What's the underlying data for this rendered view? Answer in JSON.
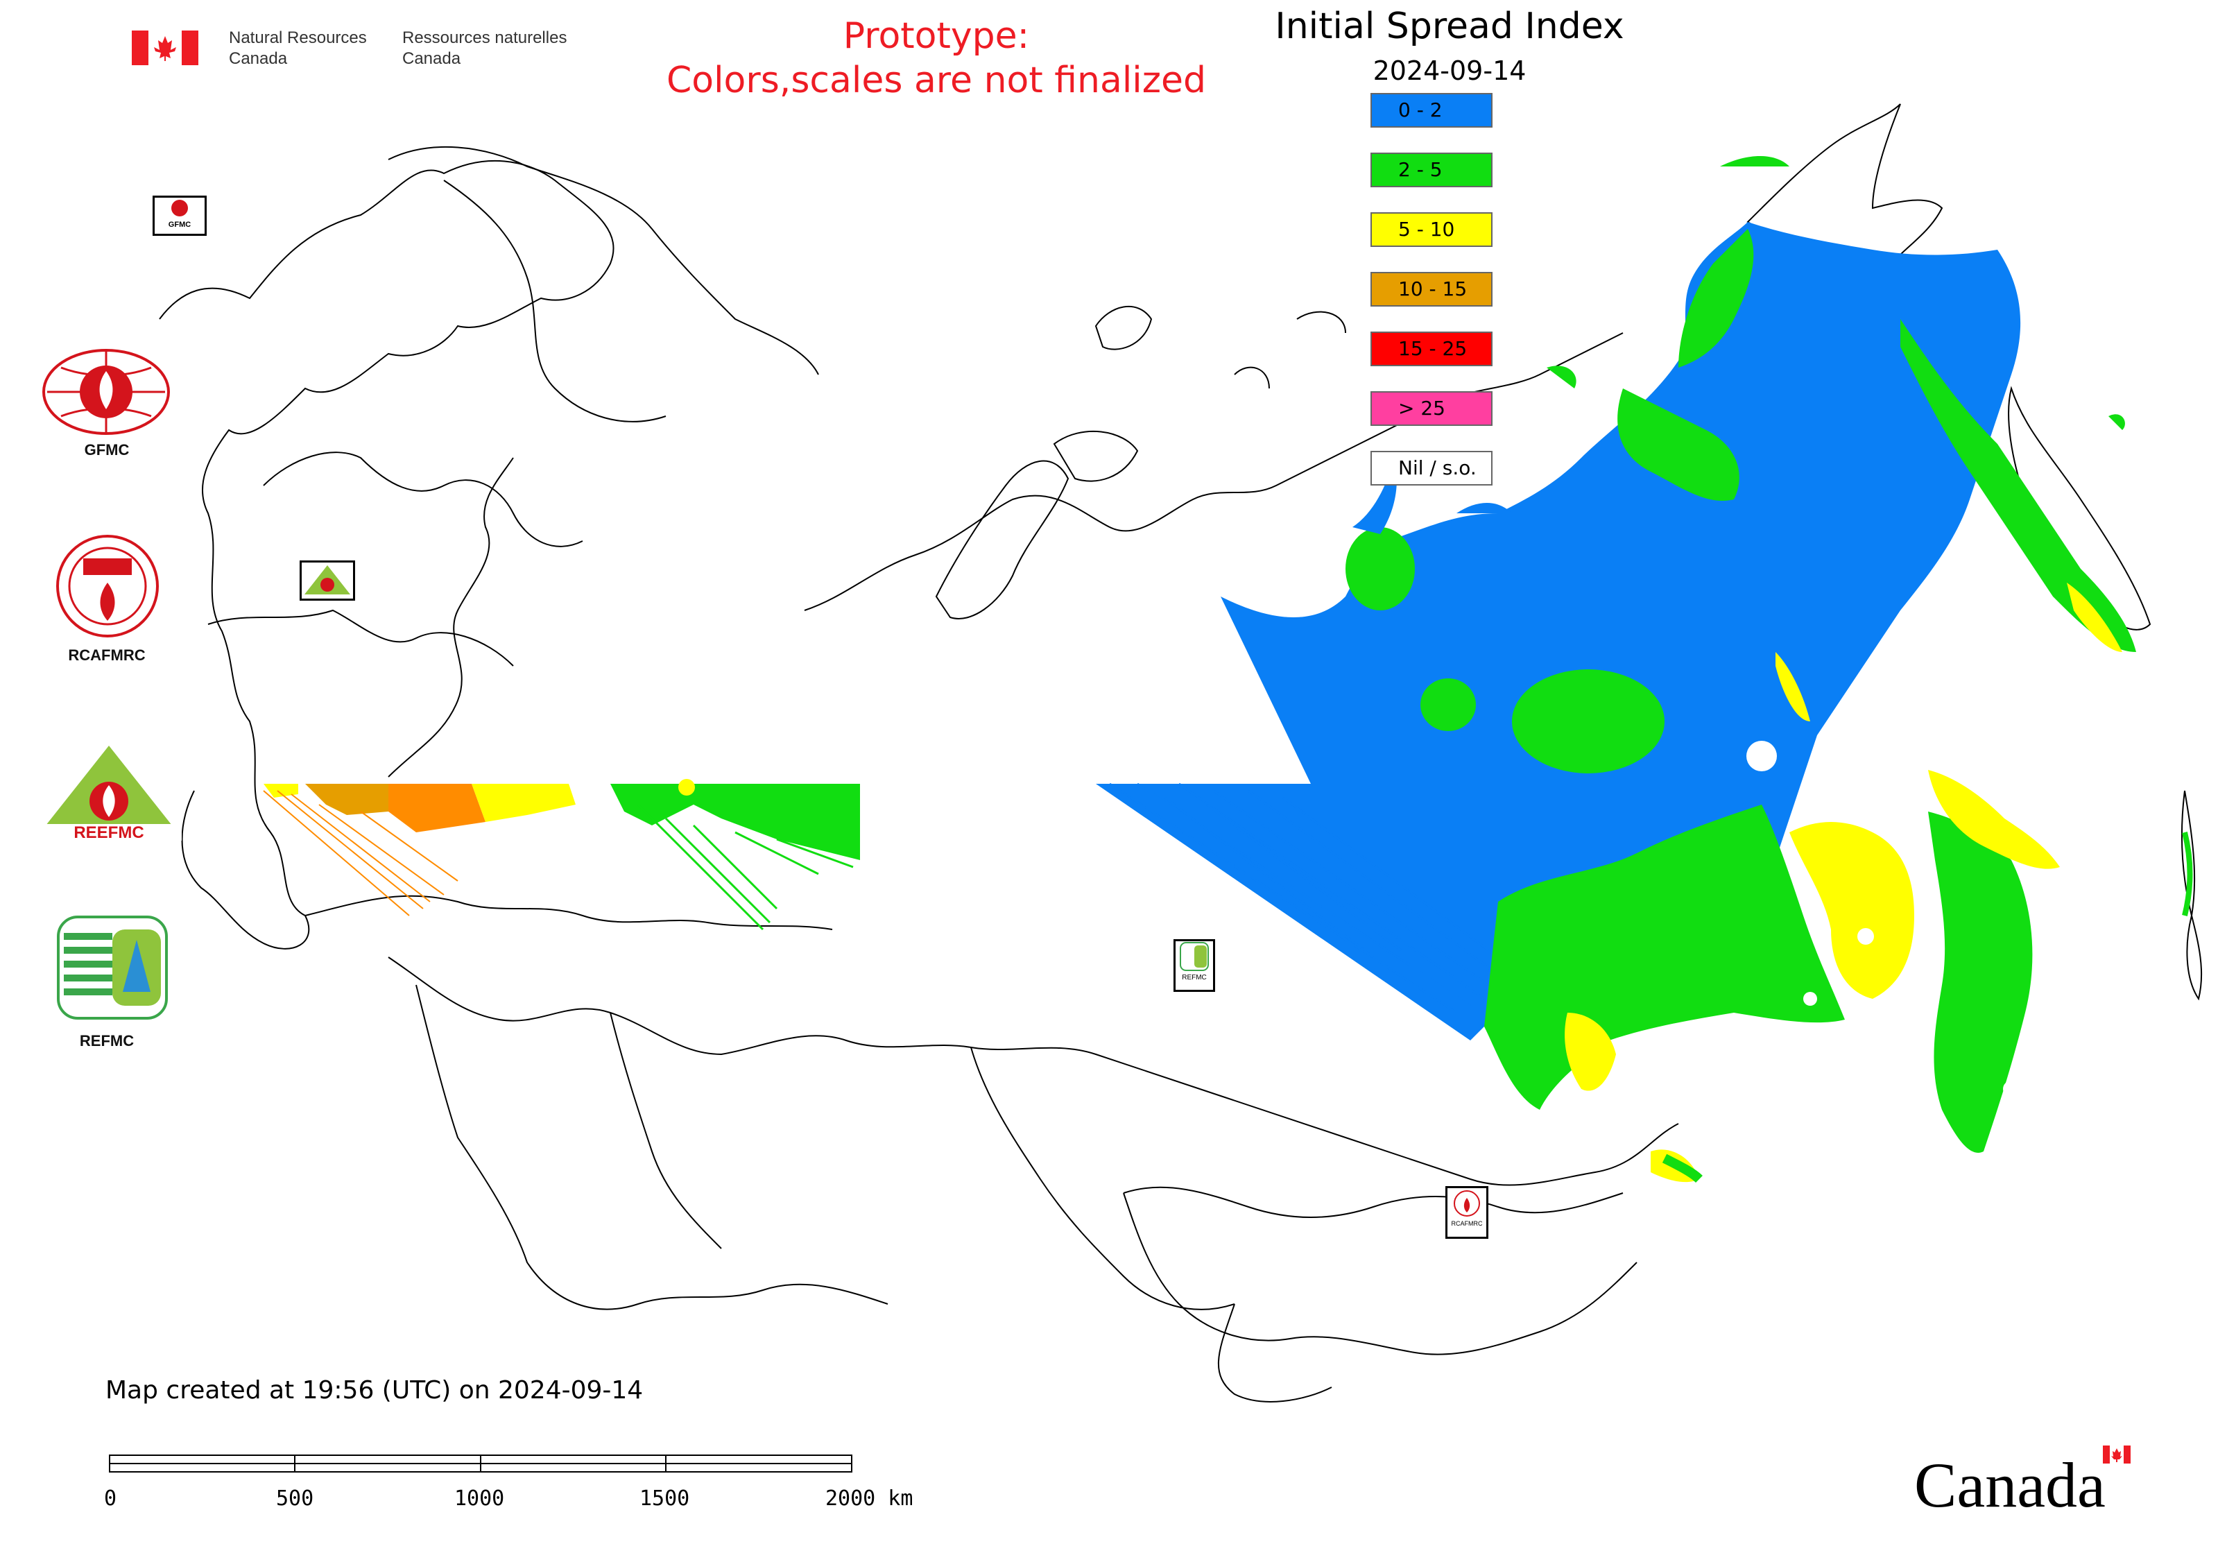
{
  "header": {
    "org_en_line1": "Natural Resources",
    "org_en_line2": "Canada",
    "org_fr_line1": "Ressources naturelles",
    "org_fr_line2": "Canada",
    "prototype_line1": "Prototype:",
    "prototype_line2": "Colors,scales are not finalized",
    "title": "Initial Spread Index",
    "date": "2024-09-14"
  },
  "legend": [
    {
      "label": "0 - 2",
      "color": "#0a7ff5"
    },
    {
      "label": "2 - 5",
      "color": "#11dd11"
    },
    {
      "label": "5 - 10",
      "color": "#ffff00"
    },
    {
      "label": "10 - 15",
      "color": "#e69e00"
    },
    {
      "label": "15 - 25",
      "color": "#ff0000"
    },
    {
      "label": "> 25",
      "color": "#ff3fa0"
    },
    {
      "label": "Nil / s.o.",
      "color": "#ffffff"
    }
  ],
  "side_logos": [
    {
      "label": "GFMC"
    },
    {
      "label": "RCAFMRC"
    },
    {
      "label": "REEFMC"
    },
    {
      "label": "REFMC"
    }
  ],
  "map_logo_labels": {
    "gfmc": "GFMC",
    "refmc": "REFMC",
    "rcafmrc": "RCAFMRC"
  },
  "footer": {
    "created": "Map created at 19:56 (UTC) on 2024-09-14",
    "scale_ticks": [
      "0",
      "500",
      "1000",
      "1500",
      "2000 km"
    ],
    "wordmark": "Canada"
  },
  "colors": {
    "low": "#0a7ff5",
    "moderate": "#11dd11",
    "high": "#ffff00",
    "very_high": "#e69e00",
    "red_text": "#ee1c24"
  }
}
